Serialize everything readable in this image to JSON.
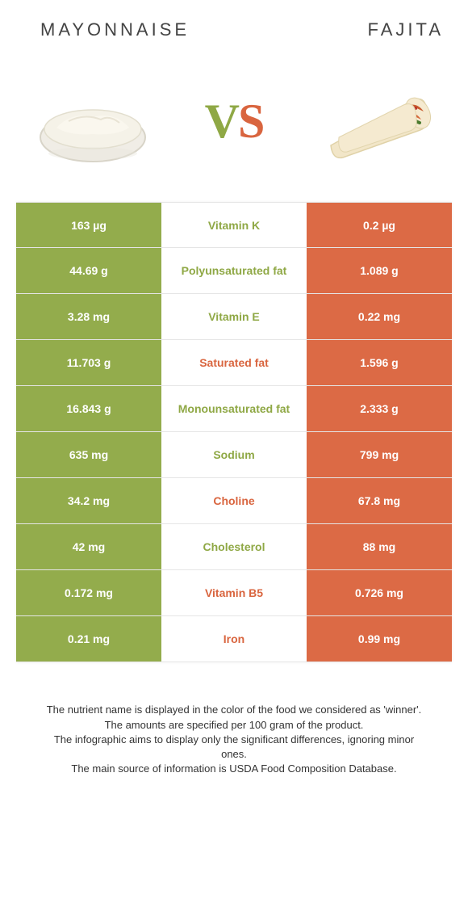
{
  "colors": {
    "green": "#93ac4c",
    "orange": "#dc6a45",
    "mid_green_text": "#8fa845",
    "mid_orange_text": "#d9653f",
    "row_border": "#e5e5e5",
    "text": "#333333"
  },
  "foods": {
    "left": "Mayonnaise",
    "right": "Fajita"
  },
  "vs": {
    "v": "V",
    "s": "S"
  },
  "rows": [
    {
      "nutrient": "Vitamin K",
      "left": "163 µg",
      "right": "0.2 µg",
      "winner": "left"
    },
    {
      "nutrient": "Polyunsaturated fat",
      "left": "44.69 g",
      "right": "1.089 g",
      "winner": "left"
    },
    {
      "nutrient": "Vitamin E",
      "left": "3.28 mg",
      "right": "0.22 mg",
      "winner": "left"
    },
    {
      "nutrient": "Saturated fat",
      "left": "11.703 g",
      "right": "1.596 g",
      "winner": "right"
    },
    {
      "nutrient": "Monounsaturated fat",
      "left": "16.843 g",
      "right": "2.333 g",
      "winner": "left"
    },
    {
      "nutrient": "Sodium",
      "left": "635 mg",
      "right": "799 mg",
      "winner": "left"
    },
    {
      "nutrient": "Choline",
      "left": "34.2 mg",
      "right": "67.8 mg",
      "winner": "right"
    },
    {
      "nutrient": "Cholesterol",
      "left": "42 mg",
      "right": "88 mg",
      "winner": "left"
    },
    {
      "nutrient": "Vitamin B5",
      "left": "0.172 mg",
      "right": "0.726 mg",
      "winner": "right"
    },
    {
      "nutrient": "Iron",
      "left": "0.21 mg",
      "right": "0.99 mg",
      "winner": "right"
    }
  ],
  "footnotes": [
    "The nutrient name is displayed in the color of the food we considered as 'winner'.",
    "The amounts are specified per 100 gram of the product.",
    "The infographic aims to display only the significant differences, ignoring minor ones.",
    "The main source of information is USDA Food Composition Database."
  ]
}
